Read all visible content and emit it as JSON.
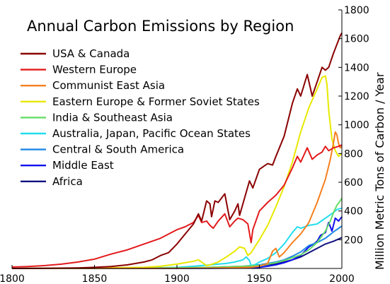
{
  "chart_data": {
    "type": "line",
    "title": "Annual Carbon Emissions by Region",
    "xlabel": "",
    "ylabel": "Million Metric Tons of Carbon / Year",
    "xlim": [
      1800,
      2000
    ],
    "ylim": [
      0,
      1800
    ],
    "x_ticks": [
      1800,
      1850,
      1900,
      1950,
      2000
    ],
    "y_ticks": [
      200,
      400,
      600,
      800,
      1000,
      1200,
      1400,
      1600,
      1800
    ],
    "y_axis_position": "right",
    "grid": false,
    "legend_position": "top-left",
    "series": [
      {
        "name": "USA & Canada",
        "color": "#8b0000",
        "points": [
          [
            1800,
            0
          ],
          [
            1820,
            1
          ],
          [
            1840,
            4
          ],
          [
            1850,
            8
          ],
          [
            1860,
            14
          ],
          [
            1870,
            25
          ],
          [
            1880,
            45
          ],
          [
            1885,
            60
          ],
          [
            1890,
            90
          ],
          [
            1895,
            110
          ],
          [
            1900,
            170
          ],
          [
            1905,
            240
          ],
          [
            1910,
            310
          ],
          [
            1913,
            380
          ],
          [
            1915,
            330
          ],
          [
            1918,
            470
          ],
          [
            1920,
            450
          ],
          [
            1921,
            360
          ],
          [
            1923,
            470
          ],
          [
            1925,
            460
          ],
          [
            1929,
            520
          ],
          [
            1932,
            340
          ],
          [
            1935,
            400
          ],
          [
            1937,
            450
          ],
          [
            1938,
            370
          ],
          [
            1940,
            450
          ],
          [
            1944,
            610
          ],
          [
            1946,
            560
          ],
          [
            1950,
            690
          ],
          [
            1955,
            730
          ],
          [
            1958,
            720
          ],
          [
            1960,
            780
          ],
          [
            1965,
            920
          ],
          [
            1970,
            1150
          ],
          [
            1973,
            1250
          ],
          [
            1975,
            1200
          ],
          [
            1979,
            1350
          ],
          [
            1982,
            1200
          ],
          [
            1985,
            1300
          ],
          [
            1988,
            1400
          ],
          [
            1990,
            1380
          ],
          [
            1992,
            1400
          ],
          [
            1995,
            1500
          ],
          [
            1997,
            1560
          ],
          [
            1999,
            1620
          ],
          [
            2000,
            1640
          ]
        ]
      },
      {
        "name": "Western Europe",
        "color": "#e31a1c",
        "points": [
          [
            1800,
            10
          ],
          [
            1810,
            14
          ],
          [
            1820,
            20
          ],
          [
            1830,
            30
          ],
          [
            1840,
            45
          ],
          [
            1850,
            65
          ],
          [
            1860,
            100
          ],
          [
            1870,
            130
          ],
          [
            1880,
            170
          ],
          [
            1890,
            210
          ],
          [
            1900,
            270
          ],
          [
            1905,
            290
          ],
          [
            1910,
            320
          ],
          [
            1913,
            370
          ],
          [
            1915,
            320
          ],
          [
            1918,
            330
          ],
          [
            1920,
            300
          ],
          [
            1922,
            280
          ],
          [
            1925,
            330
          ],
          [
            1929,
            380
          ],
          [
            1932,
            290
          ],
          [
            1935,
            330
          ],
          [
            1937,
            350
          ],
          [
            1940,
            340
          ],
          [
            1943,
            310
          ],
          [
            1945,
            180
          ],
          [
            1946,
            270
          ],
          [
            1950,
            400
          ],
          [
            1955,
            460
          ],
          [
            1960,
            510
          ],
          [
            1965,
            580
          ],
          [
            1970,
            700
          ],
          [
            1973,
            780
          ],
          [
            1975,
            740
          ],
          [
            1979,
            840
          ],
          [
            1982,
            760
          ],
          [
            1985,
            790
          ],
          [
            1988,
            810
          ],
          [
            1990,
            850
          ],
          [
            1992,
            820
          ],
          [
            1995,
            840
          ],
          [
            1998,
            850
          ],
          [
            2000,
            860
          ]
        ]
      },
      {
        "name": "Communist East Asia",
        "color": "#f58020",
        "points": [
          [
            1800,
            0
          ],
          [
            1900,
            1
          ],
          [
            1920,
            3
          ],
          [
            1940,
            7
          ],
          [
            1945,
            9
          ],
          [
            1950,
            15
          ],
          [
            1955,
            35
          ],
          [
            1958,
            120
          ],
          [
            1960,
            140
          ],
          [
            1962,
            80
          ],
          [
            1965,
            110
          ],
          [
            1970,
            180
          ],
          [
            1975,
            240
          ],
          [
            1980,
            320
          ],
          [
            1985,
            460
          ],
          [
            1990,
            620
          ],
          [
            1993,
            760
          ],
          [
            1995,
            880
          ],
          [
            1996,
            950
          ],
          [
            1997,
            930
          ],
          [
            1998,
            870
          ],
          [
            1999,
            840
          ],
          [
            2000,
            850
          ]
        ]
      },
      {
        "name": "Eastern Europe & Former Soviet States",
        "color": "#e8e800",
        "points": [
          [
            1800,
            0
          ],
          [
            1850,
            3
          ],
          [
            1880,
            8
          ],
          [
            1890,
            15
          ],
          [
            1900,
            30
          ],
          [
            1910,
            50
          ],
          [
            1913,
            60
          ],
          [
            1918,
            20
          ],
          [
            1920,
            25
          ],
          [
            1925,
            45
          ],
          [
            1930,
            80
          ],
          [
            1935,
            120
          ],
          [
            1938,
            150
          ],
          [
            1941,
            140
          ],
          [
            1943,
            90
          ],
          [
            1945,
            110
          ],
          [
            1950,
            200
          ],
          [
            1955,
            300
          ],
          [
            1960,
            430
          ],
          [
            1965,
            570
          ],
          [
            1970,
            740
          ],
          [
            1975,
            950
          ],
          [
            1980,
            1120
          ],
          [
            1985,
            1250
          ],
          [
            1988,
            1330
          ],
          [
            1990,
            1340
          ],
          [
            1991,
            1280
          ],
          [
            1992,
            1100
          ],
          [
            1994,
            900
          ],
          [
            1996,
            820
          ],
          [
            1998,
            780
          ],
          [
            2000,
            800
          ]
        ]
      },
      {
        "name": "India & Southeast Asia",
        "color": "#66dd66",
        "points": [
          [
            1800,
            0
          ],
          [
            1900,
            4
          ],
          [
            1920,
            8
          ],
          [
            1940,
            15
          ],
          [
            1950,
            20
          ],
          [
            1960,
            40
          ],
          [
            1965,
            55
          ],
          [
            1970,
            75
          ],
          [
            1975,
            95
          ],
          [
            1980,
            130
          ],
          [
            1985,
            180
          ],
          [
            1990,
            260
          ],
          [
            1993,
            330
          ],
          [
            1995,
            390
          ],
          [
            1997,
            440
          ],
          [
            1999,
            470
          ],
          [
            2000,
            490
          ]
        ]
      },
      {
        "name": "Australia, Japan, Pacific Ocean States",
        "color": "#22ddee",
        "points": [
          [
            1800,
            0
          ],
          [
            1880,
            2
          ],
          [
            1900,
            8
          ],
          [
            1910,
            15
          ],
          [
            1920,
            25
          ],
          [
            1930,
            35
          ],
          [
            1935,
            45
          ],
          [
            1940,
            60
          ],
          [
            1942,
            80
          ],
          [
            1944,
            55
          ],
          [
            1945,
            20
          ],
          [
            1948,
            30
          ],
          [
            1950,
            45
          ],
          [
            1955,
            70
          ],
          [
            1960,
            110
          ],
          [
            1965,
            170
          ],
          [
            1970,
            250
          ],
          [
            1973,
            290
          ],
          [
            1975,
            280
          ],
          [
            1980,
            300
          ],
          [
            1985,
            310
          ],
          [
            1990,
            350
          ],
          [
            1995,
            390
          ],
          [
            1997,
            410
          ],
          [
            2000,
            420
          ]
        ]
      },
      {
        "name": "Central & South America",
        "color": "#1e88e5",
        "points": [
          [
            1800,
            0
          ],
          [
            1900,
            3
          ],
          [
            1920,
            8
          ],
          [
            1940,
            15
          ],
          [
            1950,
            25
          ],
          [
            1960,
            45
          ],
          [
            1965,
            60
          ],
          [
            1970,
            85
          ],
          [
            1975,
            115
          ],
          [
            1980,
            160
          ],
          [
            1985,
            180
          ],
          [
            1990,
            210
          ],
          [
            1995,
            255
          ],
          [
            2000,
            295
          ]
        ]
      },
      {
        "name": "Middle East",
        "color": "#1010ee",
        "points": [
          [
            1800,
            0
          ],
          [
            1920,
            1
          ],
          [
            1940,
            3
          ],
          [
            1950,
            8
          ],
          [
            1955,
            15
          ],
          [
            1960,
            25
          ],
          [
            1965,
            40
          ],
          [
            1970,
            60
          ],
          [
            1975,
            90
          ],
          [
            1980,
            150
          ],
          [
            1983,
            170
          ],
          [
            1985,
            190
          ],
          [
            1987,
            230
          ],
          [
            1990,
            250
          ],
          [
            1992,
            320
          ],
          [
            1994,
            260
          ],
          [
            1996,
            350
          ],
          [
            1998,
            330
          ],
          [
            2000,
            360
          ]
        ]
      },
      {
        "name": "Africa",
        "color": "#101080",
        "points": [
          [
            1800,
            0
          ],
          [
            1900,
            2
          ],
          [
            1920,
            6
          ],
          [
            1940,
            12
          ],
          [
            1950,
            20
          ],
          [
            1960,
            32
          ],
          [
            1965,
            45
          ],
          [
            1970,
            60
          ],
          [
            1975,
            80
          ],
          [
            1980,
            110
          ],
          [
            1985,
            140
          ],
          [
            1990,
            170
          ],
          [
            1995,
            190
          ],
          [
            2000,
            215
          ]
        ]
      }
    ]
  }
}
